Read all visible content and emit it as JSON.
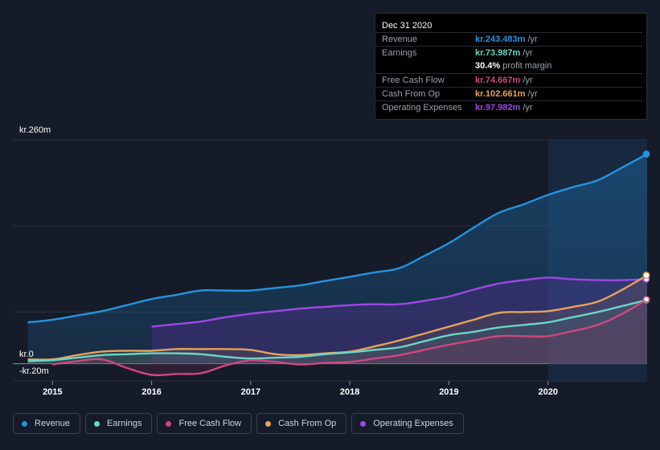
{
  "tooltip": {
    "date": "Dec 31 2020",
    "rows": {
      "revenue": {
        "label": "Revenue",
        "value": "kr.243.483m",
        "unit": "/yr",
        "color": "#2394df"
      },
      "earnings": {
        "label": "Earnings",
        "value": "kr.73.987m",
        "unit": "/yr",
        "color": "#69d6c5"
      },
      "margin": {
        "value": "30.4%",
        "unit": "profit margin"
      },
      "fcf": {
        "label": "Free Cash Flow",
        "value": "kr.74.667m",
        "unit": "/yr",
        "color": "#d0477f"
      },
      "cfo": {
        "label": "Cash From Op",
        "value": "kr.102.661m",
        "unit": "/yr",
        "color": "#e4a35a"
      },
      "opex": {
        "label": "Operating Expenses",
        "value": "kr.97.982m",
        "unit": "/yr",
        "color": "#a146e8"
      }
    }
  },
  "legend": {
    "revenue": "Revenue",
    "earnings": "Earnings",
    "fcf": "Free Cash Flow",
    "cfo": "Cash From Op",
    "opex": "Operating Expenses"
  },
  "chart_data": {
    "type": "area",
    "title": "",
    "xlabel": "",
    "ylabel": "",
    "ylim": [
      -20,
      260
    ],
    "y_tick_labels": [
      "kr.260m",
      "kr.0",
      "-kr.20m"
    ],
    "x_tick_labels": [
      "2015",
      "2016",
      "2017",
      "2018",
      "2019",
      "2020"
    ],
    "x_ticks": [
      2015,
      2016,
      2017,
      2018,
      2019,
      2020
    ],
    "xlim": [
      2014.6,
      2021.0
    ],
    "highlight_start": 2020.0,
    "series": [
      {
        "name": "Revenue",
        "key": "revenue",
        "color": "#2394df",
        "fill": true,
        "x": [
          2014.75,
          2015.0,
          2015.25,
          2015.5,
          2015.75,
          2016.0,
          2016.25,
          2016.5,
          2016.75,
          2017.0,
          2017.25,
          2017.5,
          2017.75,
          2018.0,
          2018.25,
          2018.5,
          2018.75,
          2019.0,
          2019.25,
          2019.5,
          2019.75,
          2020.0,
          2020.25,
          2020.5,
          2020.75,
          2021.0
        ],
        "values": [
          48,
          51,
          56,
          61,
          68,
          75,
          80,
          85,
          85,
          85,
          88,
          91,
          96,
          101,
          106,
          111,
          125,
          140,
          158,
          175,
          185,
          196,
          205,
          213,
          228,
          243.5
        ]
      },
      {
        "name": "Operating Expenses",
        "key": "opex",
        "color": "#a146e8",
        "fill": true,
        "x": [
          2016.0,
          2016.25,
          2016.5,
          2016.75,
          2017.0,
          2017.25,
          2017.5,
          2017.75,
          2018.0,
          2018.25,
          2018.5,
          2018.75,
          2019.0,
          2019.25,
          2019.5,
          2019.75,
          2020.0,
          2020.25,
          2020.5,
          2020.75,
          2021.0
        ],
        "values": [
          43,
          46,
          49,
          54,
          58,
          61,
          64,
          66,
          68,
          69,
          69,
          73,
          78,
          86,
          93,
          97,
          100,
          98,
          97,
          97,
          98
        ]
      },
      {
        "name": "Cash From Op",
        "key": "cfo",
        "color": "#e4a35a",
        "fill": true,
        "x": [
          2014.75,
          2015.0,
          2015.25,
          2015.5,
          2015.75,
          2016.0,
          2016.25,
          2016.5,
          2016.75,
          2017.0,
          2017.25,
          2017.5,
          2017.75,
          2018.0,
          2018.25,
          2018.5,
          2018.75,
          2019.0,
          2019.25,
          2019.5,
          2019.75,
          2020.0,
          2020.25,
          2020.5,
          2020.75,
          2021.0
        ],
        "values": [
          5,
          5,
          10,
          14,
          15,
          15,
          17,
          17,
          17,
          16,
          11,
          10,
          12,
          14,
          20,
          27,
          35,
          43,
          51,
          59,
          60,
          61,
          66,
          72,
          86,
          102.7
        ]
      },
      {
        "name": "Earnings",
        "key": "earnings",
        "color": "#69d6c5",
        "fill": true,
        "x": [
          2014.75,
          2015.0,
          2015.25,
          2015.5,
          2015.75,
          2016.0,
          2016.25,
          2016.5,
          2016.75,
          2017.0,
          2017.25,
          2017.5,
          2017.75,
          2018.0,
          2018.25,
          2018.5,
          2018.75,
          2019.0,
          2019.25,
          2019.5,
          2019.75,
          2020.0,
          2020.25,
          2020.5,
          2020.75,
          2021.0
        ],
        "values": [
          3,
          4,
          7,
          10,
          11,
          12,
          12,
          11,
          8,
          6,
          7,
          8,
          11,
          13,
          16,
          19,
          26,
          33,
          37,
          42,
          45,
          48,
          54,
          60,
          67,
          74
        ]
      },
      {
        "name": "Free Cash Flow",
        "key": "fcf",
        "color": "#d0477f",
        "fill": true,
        "x": [
          2015.0,
          2015.25,
          2015.5,
          2015.75,
          2016.0,
          2016.25,
          2016.5,
          2016.75,
          2017.0,
          2017.25,
          2017.5,
          2017.75,
          2018.0,
          2018.25,
          2018.5,
          2018.75,
          2019.0,
          2019.25,
          2019.5,
          2019.75,
          2020.0,
          2020.25,
          2020.5,
          2020.75,
          2021.0
        ],
        "values": [
          -1,
          3,
          5,
          -5,
          -13,
          -12,
          -11,
          -2,
          4,
          2,
          -1,
          1,
          2,
          6,
          10,
          16,
          22,
          27,
          32,
          32,
          32,
          38,
          45,
          58,
          74.7
        ]
      }
    ]
  }
}
